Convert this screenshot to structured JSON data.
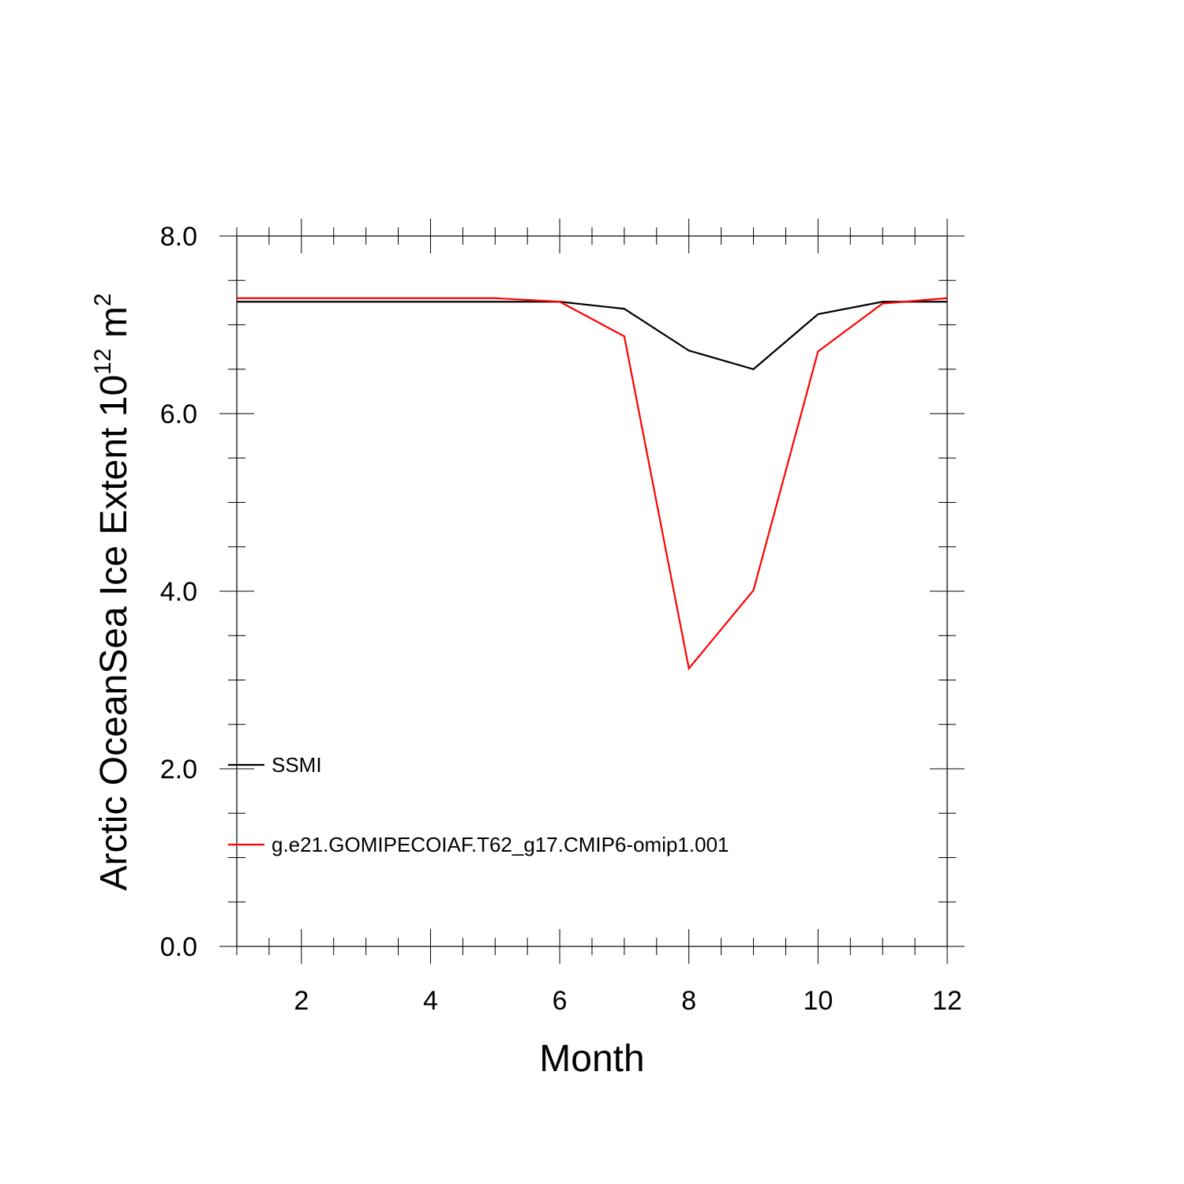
{
  "chart_data": {
    "type": "line",
    "title": "",
    "xlabel": "Month",
    "ylabel": {
      "prefix": "Arctic OceanSea Ice Extent 10",
      "exponent": "12",
      "unit": " m",
      "unit_exponent": "2"
    },
    "xlim": [
      1,
      12
    ],
    "ylim": [
      0,
      8
    ],
    "x_ticks": [
      2,
      4,
      6,
      8,
      10,
      12
    ],
    "x_tick_labels": [
      "2",
      "4",
      "6",
      "8",
      "10",
      "12"
    ],
    "y_ticks": [
      0,
      2,
      4,
      6,
      8
    ],
    "y_tick_labels": [
      "0.0",
      "2.0",
      "4.0",
      "6.0",
      "8.0"
    ],
    "grid": false,
    "legend_position": "lower-left",
    "x": [
      1,
      2,
      3,
      4,
      5,
      6,
      7,
      8,
      9,
      10,
      11,
      12
    ],
    "series": [
      {
        "name": "SSMI",
        "color": "#000000",
        "values": [
          7.26,
          7.26,
          7.26,
          7.26,
          7.26,
          7.26,
          7.18,
          6.71,
          6.5,
          7.12,
          7.26,
          7.26
        ]
      },
      {
        "name": "g.e21.GOMIPECOIAF.T62_g17.CMIP6-omip1.001",
        "color": "#ff0000",
        "values": [
          7.3,
          7.3,
          7.3,
          7.3,
          7.3,
          7.26,
          6.87,
          3.13,
          4.01,
          6.7,
          7.24,
          7.3
        ]
      }
    ]
  }
}
